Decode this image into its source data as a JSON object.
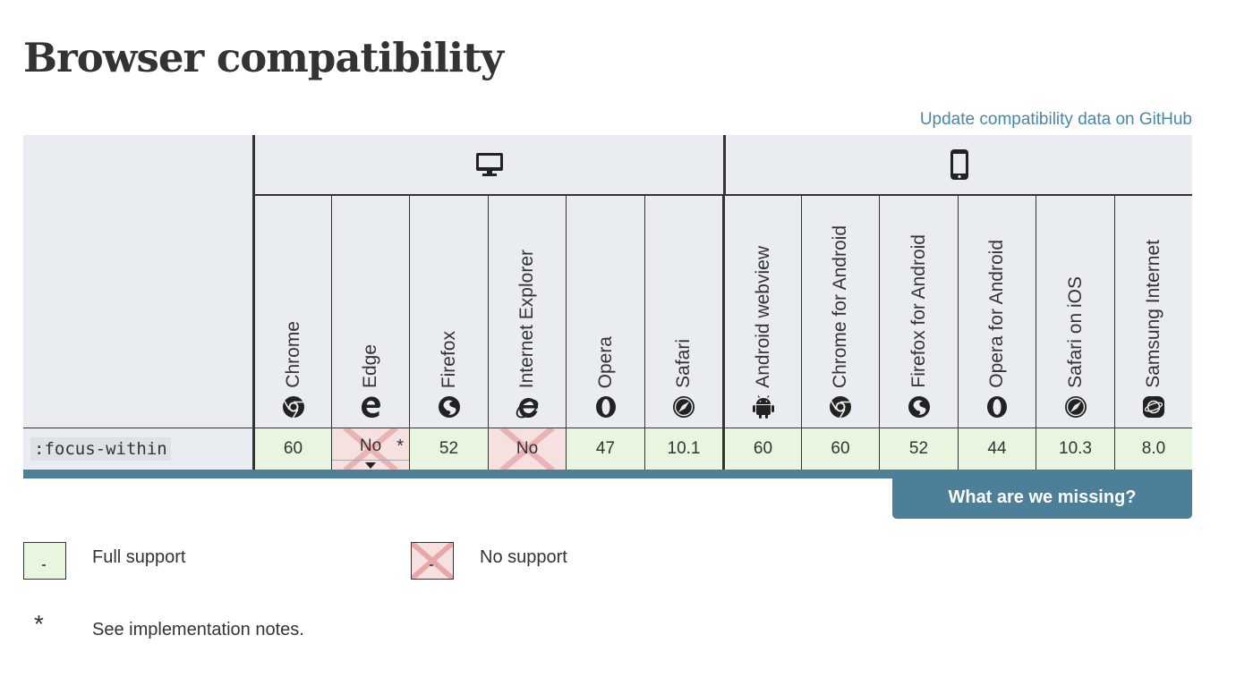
{
  "page": {
    "title": "Browser compatibility",
    "github_link": "Update compatibility data on GitHub"
  },
  "platforms": [
    {
      "name": "desktop",
      "icon": "desktop-icon"
    },
    {
      "name": "mobile",
      "icon": "mobile-phone-icon"
    }
  ],
  "browsers": [
    {
      "name": "Chrome",
      "icon": "chrome-icon"
    },
    {
      "name": "Edge",
      "icon": "edge-icon"
    },
    {
      "name": "Firefox",
      "icon": "firefox-icon"
    },
    {
      "name": "Internet Explorer",
      "icon": "internet-explorer-icon"
    },
    {
      "name": "Opera",
      "icon": "opera-icon"
    },
    {
      "name": "Safari",
      "icon": "safari-icon"
    },
    {
      "name": "Android webview",
      "icon": "android-icon"
    },
    {
      "name": "Chrome for Android",
      "icon": "chrome-icon"
    },
    {
      "name": "Firefox for Android",
      "icon": "firefox-icon"
    },
    {
      "name": "Opera for Android",
      "icon": "opera-icon"
    },
    {
      "name": "Safari on iOS",
      "icon": "safari-icon"
    },
    {
      "name": "Samsung Internet",
      "icon": "samsung-internet-icon"
    }
  ],
  "feature": {
    "name": ":focus-within",
    "support": [
      {
        "value": "60",
        "status": "yes"
      },
      {
        "value": "No",
        "status": "no",
        "note": "*",
        "expandable": true
      },
      {
        "value": "52",
        "status": "yes"
      },
      {
        "value": "No",
        "status": "no"
      },
      {
        "value": "47",
        "status": "yes"
      },
      {
        "value": "10.1",
        "status": "yes"
      },
      {
        "value": "60",
        "status": "yes"
      },
      {
        "value": "60",
        "status": "yes"
      },
      {
        "value": "52",
        "status": "yes"
      },
      {
        "value": "44",
        "status": "yes"
      },
      {
        "value": "10.3",
        "status": "yes"
      },
      {
        "value": "8.0",
        "status": "yes"
      }
    ]
  },
  "missing_button": "What are we missing?",
  "legend": {
    "full_support": "Full support",
    "no_support": "No support",
    "star": "*",
    "notes": "See implementation notes."
  },
  "colors": {
    "full_support_bg": "#e8f6e0",
    "no_support_bg": "#f6e0e0",
    "header_bg": "#e9edf1",
    "accent": "#4e7f99",
    "link": "#4a86a8"
  }
}
